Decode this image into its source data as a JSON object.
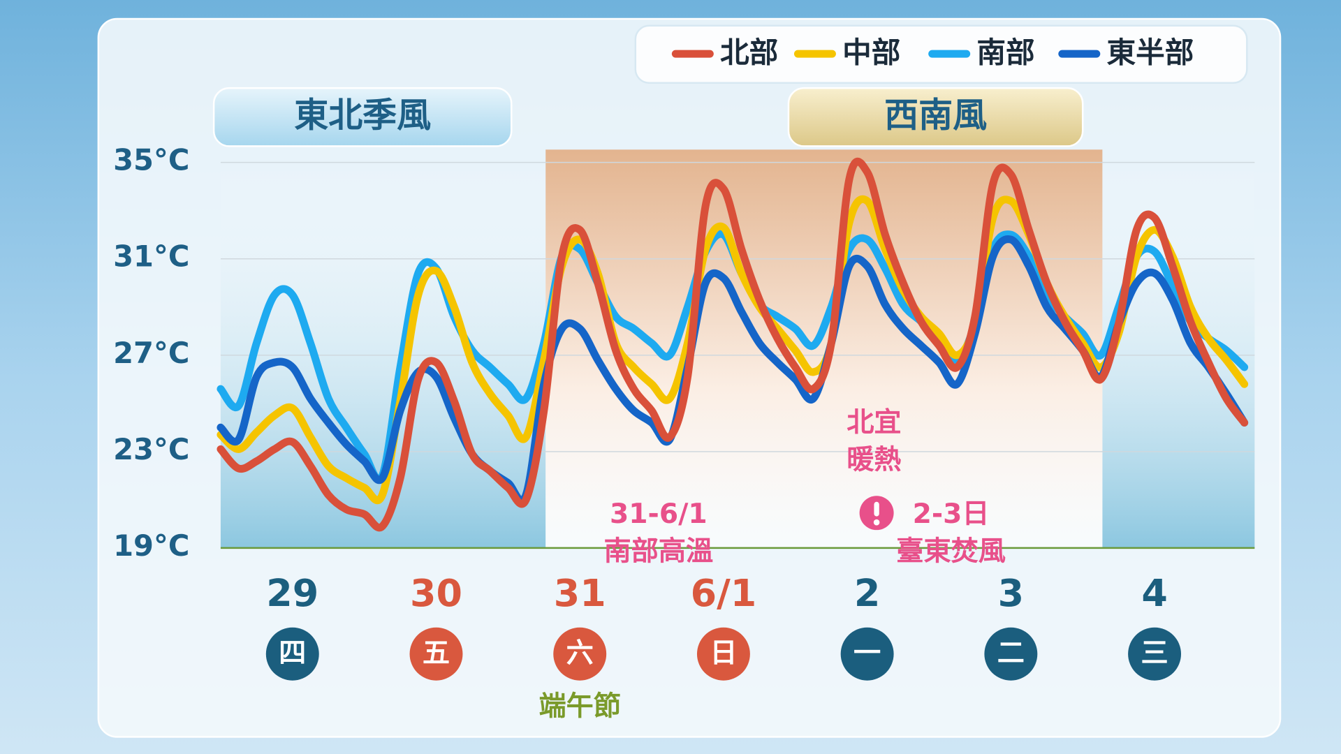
{
  "chart_data": {
    "type": "line",
    "categories": [
      null,
      null,
      null,
      null,
      "29",
      null,
      null,
      null,
      null,
      null,
      null,
      null,
      "30",
      null,
      null,
      null,
      null,
      null,
      null,
      null,
      "31",
      null,
      null,
      null,
      null,
      null,
      null,
      null,
      "6/1",
      null,
      null,
      null,
      null,
      null,
      null,
      null,
      "2",
      null,
      null,
      null,
      null,
      null,
      null,
      null,
      "3",
      null,
      null,
      null,
      null,
      null,
      null,
      null,
      "4",
      null,
      null,
      null,
      null,
      null
    ],
    "weekdays": [
      null,
      null,
      null,
      null,
      "四",
      null,
      null,
      null,
      null,
      null,
      null,
      null,
      "五",
      null,
      null,
      null,
      null,
      null,
      null,
      null,
      "六",
      null,
      null,
      null,
      null,
      null,
      null,
      null,
      "日",
      null,
      null,
      null,
      null,
      null,
      null,
      null,
      "一",
      null,
      null,
      null,
      null,
      null,
      null,
      null,
      "二",
      null,
      null,
      null,
      null,
      null,
      null,
      null,
      "三",
      null,
      null,
      null,
      null,
      null
    ],
    "day_label_colors": [
      null,
      null,
      null,
      null,
      "#1b5e7e",
      null,
      null,
      null,
      null,
      null,
      null,
      null,
      "#d9583e",
      null,
      null,
      null,
      null,
      null,
      null,
      null,
      "#d9583e",
      null,
      null,
      null,
      null,
      null,
      null,
      null,
      "#d9583e",
      null,
      null,
      null,
      null,
      null,
      null,
      null,
      "#1b5e7e",
      null,
      null,
      null,
      null,
      null,
      null,
      null,
      "#1b5e7e",
      null,
      null,
      null,
      null,
      null,
      null,
      null,
      "#1b5e7e",
      null,
      null,
      null,
      null,
      null
    ],
    "holiday_label": "端午節",
    "series": [
      {
        "name": "北部",
        "color": "#d9503a",
        "values": [
          23.1,
          22.3,
          22.6,
          23.1,
          23.4,
          22.4,
          21.2,
          20.6,
          20.4,
          19.9,
          21.9,
          26.0,
          26.7,
          25.1,
          22.9,
          22.2,
          21.5,
          21.0,
          24.7,
          31.1,
          32.2,
          30.0,
          27.2,
          25.6,
          24.7,
          23.6,
          26.1,
          33.2,
          33.9,
          31.4,
          29.3,
          27.7,
          26.5,
          25.6,
          27.5,
          34.3,
          34.6,
          32.0,
          30.0,
          28.4,
          27.4,
          26.5,
          28.6,
          34.1,
          34.5,
          32.2,
          30.0,
          28.4,
          27.2,
          26.0,
          28.3,
          32.2,
          32.7,
          30.7,
          28.4,
          26.7,
          25.2,
          24.2
        ]
      },
      {
        "name": "中部",
        "color": "#f5c400",
        "values": [
          23.7,
          23.1,
          23.8,
          24.5,
          24.8,
          23.6,
          22.4,
          21.9,
          21.5,
          21.2,
          25.1,
          29.5,
          30.5,
          29.0,
          26.7,
          25.4,
          24.5,
          23.6,
          26.8,
          30.7,
          31.8,
          30.4,
          27.5,
          26.5,
          25.8,
          25.2,
          27.5,
          31.4,
          32.3,
          30.4,
          29.0,
          28.1,
          27.2,
          26.3,
          27.5,
          32.5,
          33.4,
          31.4,
          29.7,
          28.6,
          27.9,
          27.0,
          28.3,
          32.7,
          33.4,
          32.0,
          30.0,
          28.6,
          27.5,
          26.5,
          27.9,
          31.1,
          32.2,
          31.1,
          29.0,
          27.7,
          26.8,
          25.8
        ]
      },
      {
        "name": "南部",
        "color": "#1eaaf0",
        "values": [
          25.6,
          24.9,
          27.5,
          29.5,
          29.5,
          27.5,
          25.2,
          24.0,
          22.9,
          22.0,
          26.5,
          30.4,
          30.6,
          28.6,
          27.2,
          26.5,
          25.8,
          25.2,
          27.5,
          31.1,
          31.4,
          30.0,
          28.6,
          28.1,
          27.5,
          27.0,
          29.0,
          31.3,
          32.0,
          30.4,
          29.1,
          28.6,
          28.1,
          27.4,
          29.0,
          31.4,
          31.8,
          30.6,
          29.1,
          28.4,
          27.7,
          26.8,
          28.3,
          31.4,
          32.0,
          31.1,
          29.5,
          28.6,
          27.9,
          27.0,
          29.0,
          31.1,
          31.3,
          29.9,
          28.4,
          27.7,
          27.2,
          26.5
        ]
      },
      {
        "name": "東半部",
        "color": "#1565c8",
        "values": [
          24.0,
          23.5,
          26.1,
          26.7,
          26.5,
          25.2,
          24.2,
          23.3,
          22.6,
          21.9,
          24.7,
          26.3,
          26.1,
          24.4,
          22.9,
          22.2,
          21.7,
          21.2,
          25.8,
          28.1,
          28.1,
          26.8,
          25.6,
          24.7,
          24.2,
          23.5,
          26.5,
          30.0,
          30.2,
          28.8,
          27.5,
          26.7,
          26.0,
          25.2,
          27.5,
          30.7,
          30.7,
          29.1,
          28.1,
          27.4,
          26.7,
          25.8,
          27.9,
          31.1,
          31.8,
          30.7,
          29.0,
          28.1,
          27.2,
          26.1,
          28.3,
          30.0,
          30.4,
          29.3,
          27.5,
          26.5,
          25.4,
          24.2
        ]
      }
    ],
    "ylim": [
      19,
      35
    ],
    "yticks": [
      {
        "value": 19,
        "label": "19°C"
      },
      {
        "value": 23,
        "label": "23°C"
      },
      {
        "value": 27,
        "label": "27°C"
      },
      {
        "value": 31,
        "label": "31°C"
      },
      {
        "value": 35,
        "label": "35°C"
      }
    ],
    "grid": true,
    "legend": "top-right",
    "regimes": [
      {
        "label": "東北季風"
      },
      {
        "label": "西南風"
      }
    ],
    "annotations": [
      {
        "lines": [
          "31-6/1",
          "南部高溫"
        ]
      },
      {
        "lines": [
          "北宜",
          "暖熱"
        ]
      },
      {
        "lines": [
          "2-3日",
          "臺東焚風"
        ]
      }
    ]
  }
}
